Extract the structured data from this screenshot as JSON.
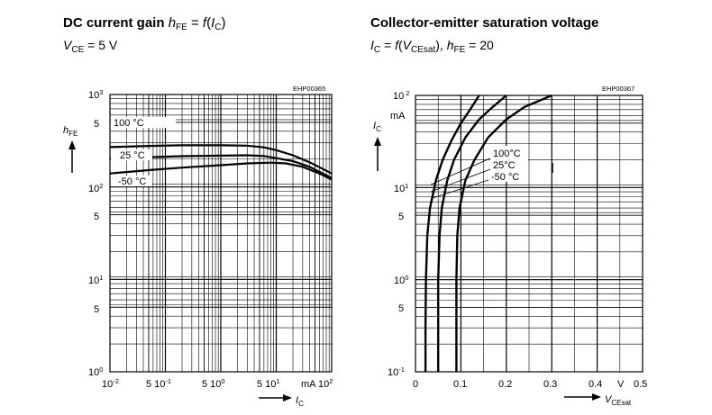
{
  "chart_data": [
    {
      "type": "line",
      "title": "DC current gain",
      "title_param": "h",
      "title_param_sub": "FE",
      "title_eq": " = ",
      "title_func": "f",
      "title_func_open": "(",
      "title_func_arg": "I",
      "title_func_arg_sub": "C",
      "title_func_close": ")",
      "subtitle_var": "V",
      "subtitle_var_sub": "CE",
      "subtitle_value": " = 5 V",
      "code": "EHP00365",
      "ylabel": "h",
      "ylabel_sub": "FE",
      "xlabel": "I",
      "xlabel_sub": "C",
      "xscale": "log",
      "yscale": "log",
      "xlim": [
        0.01,
        100
      ],
      "ylim": [
        1,
        1000
      ],
      "grid": true,
      "x_ticks": [
        {
          "base": "10",
          "exp": "-2"
        },
        {
          "base": "5 10",
          "exp": "-1"
        },
        {
          "base": "5 10",
          "exp": "0"
        },
        {
          "base": "5 10",
          "exp": "1"
        },
        {
          "base": "mA 10",
          "exp": "2"
        }
      ],
      "y_ticks": [
        {
          "base": "10",
          "exp": "3"
        },
        {
          "base": "5",
          "exp": ""
        },
        {
          "base": "10",
          "exp": "2"
        },
        {
          "base": "5",
          "exp": ""
        },
        {
          "base": "10",
          "exp": "1"
        },
        {
          "base": "5",
          "exp": ""
        },
        {
          "base": "10",
          "exp": "0"
        }
      ],
      "series": [
        {
          "name": "100 °C",
          "points": [
            [
              0.01,
              270
            ],
            [
              0.05,
              278
            ],
            [
              0.2,
              282
            ],
            [
              1,
              282
            ],
            [
              3,
              280
            ],
            [
              6,
              268
            ],
            [
              10,
              250
            ],
            [
              20,
              220
            ],
            [
              40,
              185
            ],
            [
              100,
              140
            ]
          ]
        },
        {
          "name": "25 °C",
          "points": [
            [
              0.01,
              200
            ],
            [
              0.05,
              210
            ],
            [
              0.2,
              215
            ],
            [
              1,
              218
            ],
            [
              3,
              220
            ],
            [
              6,
              216
            ],
            [
              10,
              205
            ],
            [
              20,
              190
            ],
            [
              40,
              165
            ],
            [
              100,
              125
            ]
          ]
        },
        {
          "name": "-50 °C",
          "points": [
            [
              0.01,
              140
            ],
            [
              0.05,
              152
            ],
            [
              0.2,
              162
            ],
            [
              1,
              172
            ],
            [
              3,
              180
            ],
            [
              8,
              183
            ],
            [
              15,
              180
            ],
            [
              30,
              165
            ],
            [
              60,
              140
            ],
            [
              100,
              120
            ]
          ]
        }
      ]
    },
    {
      "type": "line",
      "title": "Collector-emitter saturation voltage",
      "subtitle_a": "I",
      "subtitle_a_sub": "C",
      "subtitle_eq": " = ",
      "subtitle_func": "f",
      "subtitle_func_open": "(",
      "subtitle_func_arg": "V",
      "subtitle_func_arg_sub": "CEsat",
      "subtitle_func_close": "), ",
      "subtitle_b": "h",
      "subtitle_b_sub": "FE",
      "subtitle_b_value": " = 20",
      "code": "EHP00367",
      "ylabel": "I",
      "ylabel_sub": "C",
      "yunit": "mA",
      "xlabel": "V",
      "xlabel_sub": "CEsat",
      "xunit": "V",
      "xscale": "linear",
      "yscale": "log",
      "xlim": [
        0,
        0.5
      ],
      "ylim": [
        0.1,
        100
      ],
      "grid": true,
      "x_ticks": [
        "0",
        "0.1",
        "0.2",
        "0.3",
        "0.4",
        "0.5"
      ],
      "y_ticks": [
        {
          "base": "10",
          "exp": "2"
        },
        {
          "base": "10",
          "exp": "1"
        },
        {
          "base": "5",
          "exp": ""
        },
        {
          "base": "10",
          "exp": "0"
        },
        {
          "base": "5",
          "exp": ""
        },
        {
          "base": "10",
          "exp": "-1"
        }
      ],
      "series": [
        {
          "name": "100°C",
          "points": [
            [
              0.022,
              0.1
            ],
            [
              0.022,
              0.3
            ],
            [
              0.023,
              1
            ],
            [
              0.026,
              3
            ],
            [
              0.032,
              6
            ],
            [
              0.045,
              12
            ],
            [
              0.06,
              20
            ],
            [
              0.08,
              33
            ],
            [
              0.1,
              50
            ],
            [
              0.12,
              70
            ],
            [
              0.14,
              100
            ]
          ]
        },
        {
          "name": "25°C",
          "points": [
            [
              0.05,
              0.1
            ],
            [
              0.05,
              0.3
            ],
            [
              0.05,
              1
            ],
            [
              0.053,
              3
            ],
            [
              0.058,
              6
            ],
            [
              0.07,
              12
            ],
            [
              0.085,
              20
            ],
            [
              0.11,
              35
            ],
            [
              0.14,
              55
            ],
            [
              0.17,
              75
            ],
            [
              0.2,
              100
            ]
          ]
        },
        {
          "name": "-50 °C",
          "points": [
            [
              0.09,
              0.1
            ],
            [
              0.09,
              0.3
            ],
            [
              0.09,
              1
            ],
            [
              0.092,
              3
            ],
            [
              0.097,
              6
            ],
            [
              0.11,
              12
            ],
            [
              0.13,
              20
            ],
            [
              0.16,
              35
            ],
            [
              0.2,
              55
            ],
            [
              0.24,
              75
            ],
            [
              0.3,
              100
            ]
          ]
        }
      ]
    }
  ]
}
